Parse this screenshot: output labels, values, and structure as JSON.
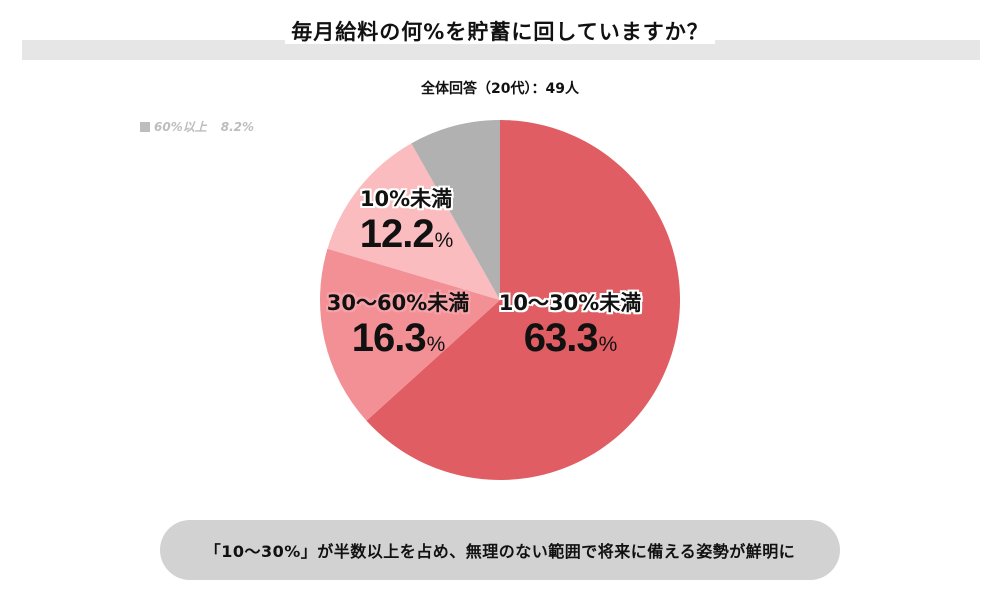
{
  "title": "毎月給料の何%を貯蓄に回していますか？",
  "subtitle": "全体回答（20代）：49人",
  "legend": {
    "label": "60%以上",
    "value": "8.2%"
  },
  "conclusion": "「10～30%」が半数以上を占め、無理のない範囲で将来に備える姿勢が鮮明に",
  "chart_data": {
    "type": "pie",
    "title": "毎月給料の何%を貯蓄に回していますか？",
    "subtitle": "全体回答（20代）：49人",
    "slices": [
      {
        "name": "10～30%未満",
        "value": 63.3,
        "display": "63.3",
        "color": "#e05d63"
      },
      {
        "name": "30～60%未満",
        "value": 16.3,
        "display": "16.3",
        "color": "#f29095"
      },
      {
        "name": "10%未満",
        "value": 12.2,
        "display": "12.2",
        "color": "#fbbcbf"
      },
      {
        "name": "60%以上",
        "value": 8.2,
        "display": "8.2",
        "color": "#b1b1b1"
      }
    ],
    "unit": "%",
    "start": "12 o'clock",
    "direction": "clockwise",
    "legend": "top-left"
  }
}
